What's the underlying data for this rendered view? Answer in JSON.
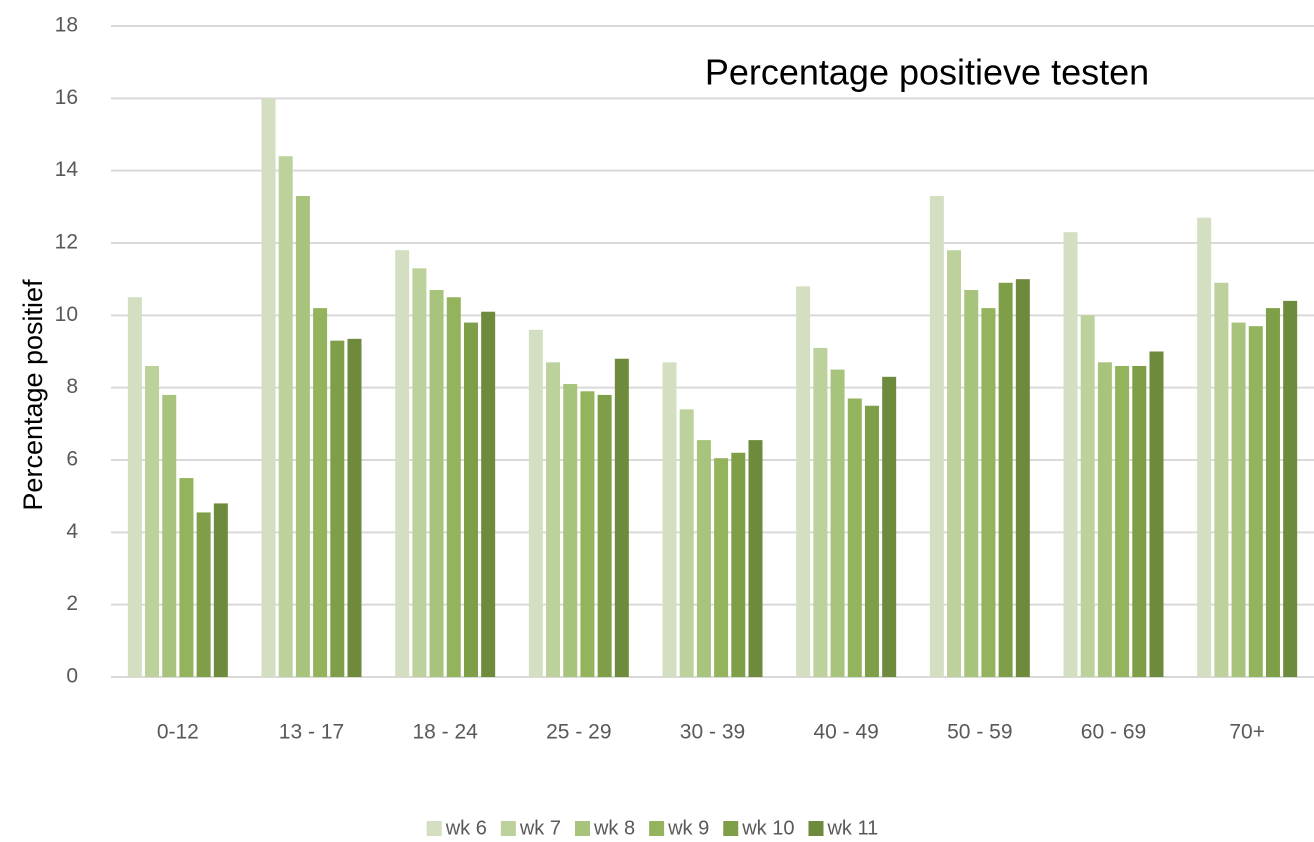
{
  "chart_data": {
    "type": "bar",
    "title": "Percentage positieve testen",
    "y_label": "Percentage positief",
    "categories": [
      "0-12",
      "13 - 17",
      "18 - 24",
      "25 - 29",
      "30 - 39",
      "40 - 49",
      "50 - 59",
      "60 - 69",
      "70+"
    ],
    "series": [
      {
        "name": "wk 6",
        "color": "#d3dfc0",
        "values": [
          10.5,
          16.0,
          11.8,
          9.6,
          8.7,
          10.8,
          13.3,
          12.3,
          12.7
        ]
      },
      {
        "name": "wk 7",
        "color": "#bdd19d",
        "values": [
          8.6,
          14.4,
          11.3,
          8.7,
          7.4,
          9.1,
          11.8,
          10.0,
          10.9
        ]
      },
      {
        "name": "wk 8",
        "color": "#a8c47c",
        "values": [
          7.8,
          13.3,
          10.7,
          8.1,
          6.55,
          8.5,
          10.7,
          8.7,
          9.8
        ]
      },
      {
        "name": "wk 9",
        "color": "#93b35c",
        "values": [
          5.5,
          10.2,
          10.5,
          7.9,
          6.05,
          7.7,
          10.2,
          8.6,
          9.7
        ]
      },
      {
        "name": "wk 10",
        "color": "#7f9e48",
        "values": [
          4.55,
          9.3,
          9.8,
          7.8,
          6.2,
          7.5,
          10.9,
          8.6,
          10.2
        ]
      },
      {
        "name": "wk 11",
        "color": "#6e8a3c",
        "values": [
          4.8,
          9.35,
          10.1,
          8.8,
          6.55,
          8.3,
          11.0,
          9.0,
          10.4
        ]
      }
    ],
    "ylim": [
      0,
      18
    ],
    "yticks": [
      0,
      2,
      4,
      6,
      8,
      10,
      12,
      14,
      16,
      18
    ],
    "grid": true,
    "legend": "bottom"
  }
}
